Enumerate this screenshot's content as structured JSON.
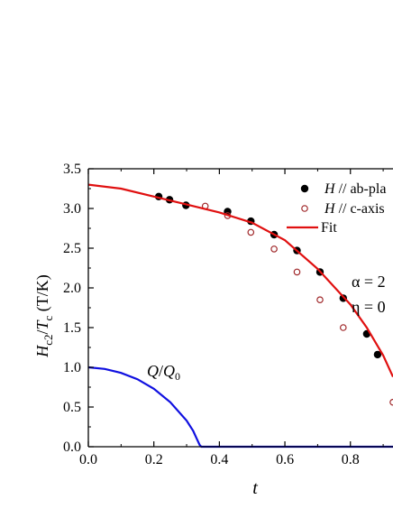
{
  "chart_data": {
    "type": "scatter",
    "xlabel": "t",
    "ylabel_parts": {
      "H": "H",
      "c2_sub": "c2",
      "slash": "/",
      "T": "T",
      "c_sub": "c",
      "units": " (T/K)"
    },
    "xlim": [
      0.0,
      0.93
    ],
    "ylim": [
      0.0,
      3.5
    ],
    "x_ticks": [
      0.0,
      0.2,
      0.4,
      0.6,
      0.8
    ],
    "x_tick_labels": [
      "0.0",
      "0.2",
      "0.4",
      "0.6",
      "0.8"
    ],
    "y_ticks": [
      0.0,
      0.5,
      1.0,
      1.5,
      2.0,
      2.5,
      3.0,
      3.5
    ],
    "y_tick_labels": [
      "0.0",
      "0.5",
      "1.0",
      "1.5",
      "2.0",
      "2.5",
      "3.0",
      "3.5"
    ],
    "grid": false,
    "legend_placement": "top-right",
    "legend_entries": [
      {
        "italic": "H",
        "rest": " // ab-pla"
      },
      {
        "italic": "H",
        "rest": " // c-axis"
      },
      {
        "italic": "",
        "rest": "Fit"
      }
    ],
    "annotations": [
      {
        "text": "α = 2"
      },
      {
        "text": "η = 0"
      }
    ],
    "q_label": {
      "Q": "Q",
      "slash": "/",
      "Q0": "Q",
      "sub": "0"
    },
    "series": [
      {
        "name": "H // ab-plane",
        "marker": "filled-circle",
        "color": "#000000",
        "x": [
          0.215,
          0.248,
          0.298,
          0.425,
          0.496,
          0.567,
          0.637,
          0.707,
          0.778,
          0.85,
          0.883
        ],
        "y": [
          3.15,
          3.11,
          3.04,
          2.96,
          2.84,
          2.67,
          2.47,
          2.2,
          1.87,
          1.42,
          1.16
        ]
      },
      {
        "name": "H // c-axis",
        "marker": "open-circle",
        "color": "#a0282a",
        "x": [
          0.357,
          0.425,
          0.496,
          0.567,
          0.637,
          0.707,
          0.778,
          0.93
        ],
        "y": [
          3.03,
          2.91,
          2.7,
          2.49,
          2.2,
          1.85,
          1.5,
          0.56
        ]
      },
      {
        "name": "Fit",
        "marker": "line",
        "color": "#e01010",
        "x": [
          0.0,
          0.1,
          0.2,
          0.3,
          0.4,
          0.5,
          0.6,
          0.7,
          0.8,
          0.85,
          0.9,
          0.93
        ],
        "y": [
          3.3,
          3.25,
          3.15,
          3.05,
          2.95,
          2.82,
          2.6,
          2.24,
          1.79,
          1.5,
          1.15,
          0.88
        ]
      },
      {
        "name": "Q/Q0",
        "marker": "line",
        "color": "#1010e0",
        "x": [
          0.0,
          0.05,
          0.1,
          0.15,
          0.2,
          0.25,
          0.3,
          0.32,
          0.33,
          0.34,
          0.345,
          0.36,
          0.5,
          0.7,
          0.93
        ],
        "y": [
          1.0,
          0.98,
          0.93,
          0.85,
          0.73,
          0.56,
          0.33,
          0.2,
          0.11,
          0.02,
          0.0,
          0.0,
          0.0,
          0.0,
          0.0
        ]
      }
    ]
  }
}
